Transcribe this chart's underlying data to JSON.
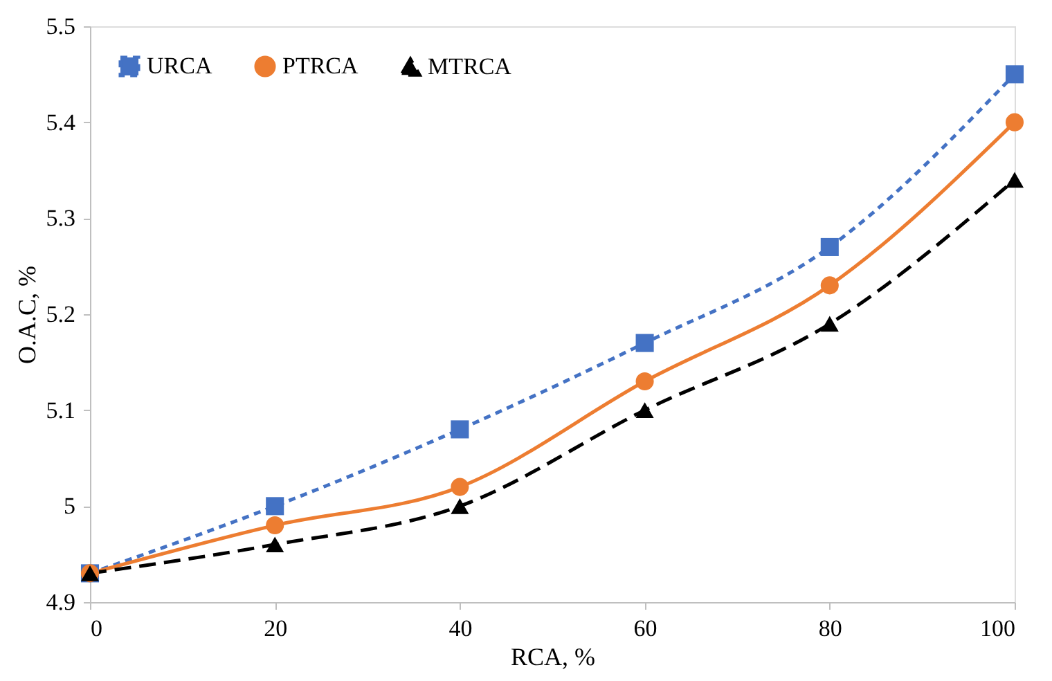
{
  "chart_data": {
    "type": "line",
    "xlabel": "RCA, %",
    "ylabel": "O.A.C, %",
    "x": [
      0,
      20,
      40,
      60,
      80,
      100
    ],
    "series": [
      {
        "name": "URCA",
        "color": "#4472c4",
        "marker": "square",
        "line_style": "dotted",
        "values": [
          4.93,
          5.0,
          5.08,
          5.17,
          5.27,
          5.45
        ]
      },
      {
        "name": "PTRCA",
        "color": "#ed7d31",
        "marker": "circle",
        "line_style": "solid",
        "values": [
          4.93,
          4.98,
          5.02,
          5.13,
          5.23,
          5.4
        ]
      },
      {
        "name": "MTRCA",
        "color": "#000000",
        "marker": "triangle",
        "line_style": "dashed",
        "values": [
          4.93,
          4.96,
          5.0,
          5.1,
          5.19,
          5.34
        ]
      }
    ],
    "xlim": [
      0,
      100
    ],
    "xticks": [
      0,
      20,
      40,
      60,
      80,
      100
    ],
    "ylim": [
      4.9,
      5.5
    ],
    "yticks": [
      4.9,
      5,
      5.1,
      5.2,
      5.3,
      5.4,
      5.5
    ],
    "grid": false,
    "legend": "top left"
  }
}
